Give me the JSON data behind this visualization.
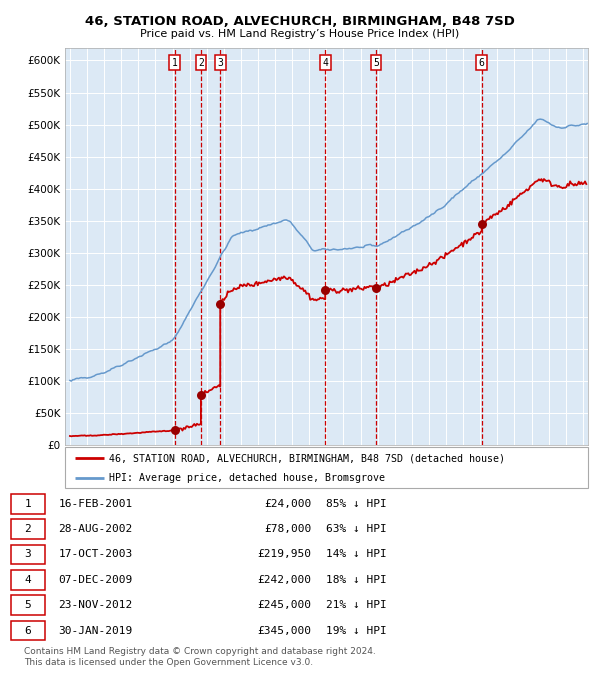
{
  "title1": "46, STATION ROAD, ALVECHURCH, BIRMINGHAM, B48 7SD",
  "title2": "Price paid vs. HM Land Registry’s House Price Index (HPI)",
  "footer": "Contains HM Land Registry data © Crown copyright and database right 2024.\nThis data is licensed under the Open Government Licence v3.0.",
  "legend_red": "46, STATION ROAD, ALVECHURCH, BIRMINGHAM, B48 7SD (detached house)",
  "legend_blue": "HPI: Average price, detached house, Bromsgrove",
  "transactions": [
    {
      "num": 1,
      "date_x": 2001.12,
      "price": 24000,
      "label": "16-FEB-2001",
      "amount": "£24,000",
      "pct": "85% ↓ HPI"
    },
    {
      "num": 2,
      "date_x": 2002.66,
      "price": 78000,
      "label": "28-AUG-2002",
      "amount": "£78,000",
      "pct": "63% ↓ HPI"
    },
    {
      "num": 3,
      "date_x": 2003.79,
      "price": 219950,
      "label": "17-OCT-2003",
      "amount": "£219,950",
      "pct": "14% ↓ HPI"
    },
    {
      "num": 4,
      "date_x": 2009.93,
      "price": 242000,
      "label": "07-DEC-2009",
      "amount": "£242,000",
      "pct": "18% ↓ HPI"
    },
    {
      "num": 5,
      "date_x": 2012.9,
      "price": 245000,
      "label": "23-NOV-2012",
      "amount": "£245,000",
      "pct": "21% ↓ HPI"
    },
    {
      "num": 6,
      "date_x": 2019.08,
      "price": 345000,
      "label": "30-JAN-2019",
      "amount": "£345,000",
      "pct": "19% ↓ HPI"
    }
  ],
  "ylim": [
    0,
    620000
  ],
  "xlim": [
    1994.7,
    2025.3
  ],
  "bg_color": "#dce9f5",
  "red_color": "#cc0000",
  "blue_color": "#6699cc",
  "marker_color": "#990000",
  "grid_color": "#ffffff"
}
